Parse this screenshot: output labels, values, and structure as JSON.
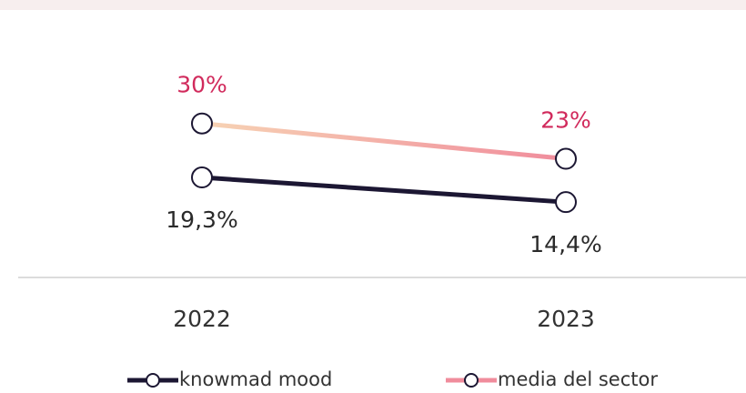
{
  "chart_data": {
    "type": "line",
    "categories": [
      "2022",
      "2023"
    ],
    "series": [
      {
        "name": "knowmad mood",
        "color": "#1c1733",
        "values": [
          19.3,
          14.4
        ],
        "value_labels": [
          "19,3%",
          "14,4%"
        ]
      },
      {
        "name": "media del sector",
        "color": "#f08c9c",
        "values": [
          30,
          23
        ],
        "value_labels": [
          "30%",
          "23%"
        ]
      }
    ],
    "ylim": [
      0,
      35
    ]
  }
}
